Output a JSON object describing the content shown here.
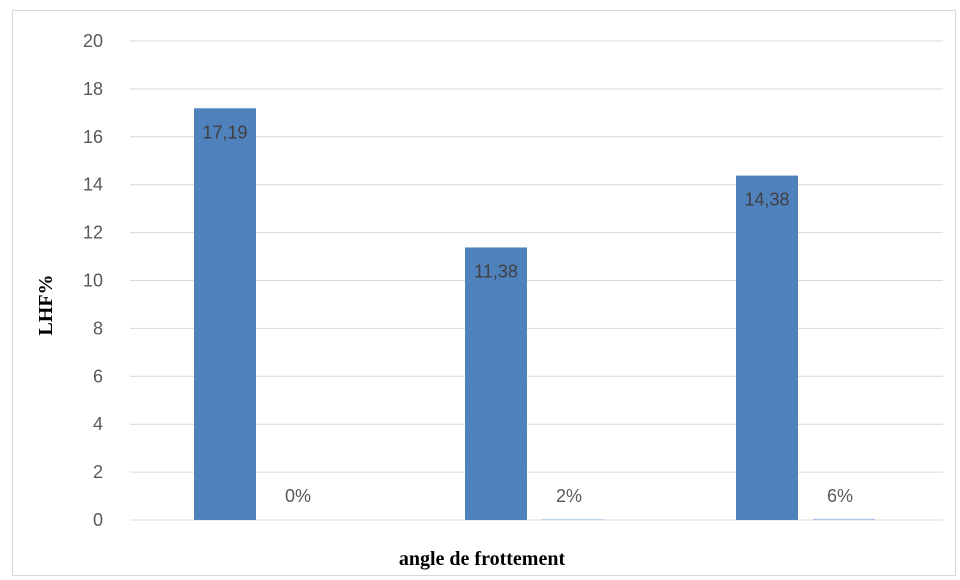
{
  "chart_data": {
    "type": "bar",
    "categories": [
      "0%",
      "2%",
      "6%"
    ],
    "series": [
      {
        "values": [
          17.19,
          11.38,
          14.38
        ],
        "labels": [
          "17,19",
          "11,38",
          "14,38"
        ],
        "color": "#4f81bd"
      },
      {
        "values": [
          0,
          0.03,
          0.05
        ],
        "color": "#a9c4e6"
      }
    ],
    "title": "",
    "xlabel": "angle de frottement",
    "ylabel": "LHF%",
    "ylim": [
      0,
      20
    ],
    "yticks": [
      0,
      2,
      4,
      6,
      8,
      10,
      12,
      14,
      16,
      18,
      20
    ],
    "grid": true
  }
}
